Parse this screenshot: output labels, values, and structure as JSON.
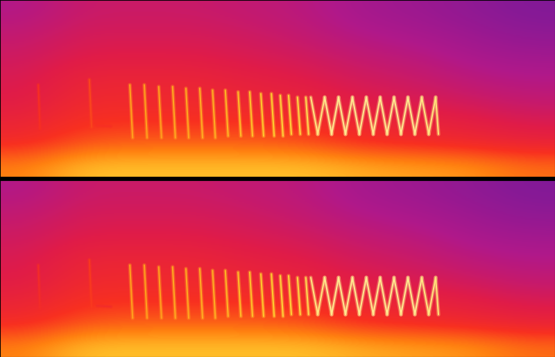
{
  "chart_data": [
    {
      "type": "spectrogram",
      "xlim": [
        0,
        100
      ],
      "ylim": [
        0,
        100
      ],
      "tick_labels": false,
      "level_range": [
        0,
        1
      ],
      "cells": [
        [
          0.75,
          0.85,
          0.85,
          0.85,
          0.85,
          0.85,
          0.82,
          0.8,
          0.78,
          0.72
        ],
        [
          0.6,
          0.68,
          0.7,
          0.7,
          0.7,
          0.68,
          0.62,
          0.6,
          0.58,
          0.55
        ],
        [
          0.55,
          0.62,
          0.62,
          0.62,
          0.62,
          0.6,
          0.56,
          0.54,
          0.52,
          0.48
        ],
        [
          0.5,
          0.58,
          0.58,
          0.58,
          0.56,
          0.54,
          0.5,
          0.48,
          0.45,
          0.42
        ],
        [
          0.48,
          0.55,
          0.55,
          0.55,
          0.52,
          0.5,
          0.46,
          0.44,
          0.4,
          0.38
        ],
        [
          0.45,
          0.5,
          0.5,
          0.5,
          0.48,
          0.46,
          0.42,
          0.4,
          0.36,
          0.34
        ],
        [
          0.42,
          0.47,
          0.47,
          0.47,
          0.45,
          0.42,
          0.38,
          0.36,
          0.33,
          0.3
        ],
        [
          0.38,
          0.44,
          0.44,
          0.44,
          0.42,
          0.4,
          0.35,
          0.33,
          0.3,
          0.27
        ]
      ],
      "calls": [
        {
          "t_start": 6.9,
          "t_end": 7.2,
          "f_start": 52,
          "f_end": 27,
          "level": 0.62
        },
        {
          "t_start": 16.1,
          "t_end": 16.5,
          "f_start": 55,
          "f_end": 28,
          "level": 0.66
        },
        {
          "t_start": 17.5,
          "t_end": 20.0,
          "f_start": 29,
          "f_end": 28.5,
          "level": 0.62
        },
        {
          "t_start": 23.4,
          "t_end": 23.9,
          "f_start": 52,
          "f_end": 22,
          "level": 0.8
        },
        {
          "t_start": 26.0,
          "t_end": 26.5,
          "f_start": 52,
          "f_end": 22,
          "level": 0.8
        },
        {
          "t_start": 28.6,
          "t_end": 29.1,
          "f_start": 51,
          "f_end": 22,
          "level": 0.8
        },
        {
          "t_start": 31.1,
          "t_end": 31.6,
          "f_start": 51,
          "f_end": 22,
          "level": 0.81
        },
        {
          "t_start": 33.5,
          "t_end": 34.0,
          "f_start": 50,
          "f_end": 22,
          "level": 0.81
        },
        {
          "t_start": 36.0,
          "t_end": 36.5,
          "f_start": 50,
          "f_end": 22,
          "level": 0.82
        },
        {
          "t_start": 38.3,
          "t_end": 38.8,
          "f_start": 49,
          "f_end": 22,
          "level": 0.82
        },
        {
          "t_start": 40.6,
          "t_end": 41.1,
          "f_start": 49,
          "f_end": 23,
          "level": 0.83
        },
        {
          "t_start": 42.9,
          "t_end": 43.4,
          "f_start": 48,
          "f_end": 23,
          "level": 0.84
        },
        {
          "t_start": 45.0,
          "t_end": 45.5,
          "f_start": 48,
          "f_end": 23,
          "level": 0.85
        },
        {
          "t_start": 47.0,
          "t_end": 47.5,
          "f_start": 47,
          "f_end": 23,
          "level": 0.86
        },
        {
          "t_start": 48.9,
          "t_end": 49.4,
          "f_start": 47,
          "f_end": 23,
          "level": 0.87
        },
        {
          "t_start": 50.5,
          "t_end": 51.0,
          "f_start": 46,
          "f_end": 23,
          "level": 0.88
        },
        {
          "t_start": 52.0,
          "t_end": 52.5,
          "f_start": 46,
          "f_end": 24,
          "level": 0.88
        },
        {
          "t_start": 53.6,
          "t_end": 54.1,
          "f_start": 45,
          "f_end": 24,
          "level": 0.89
        },
        {
          "t_start": 55.1,
          "t_end": 55.6,
          "f_start": 45,
          "f_end": 24,
          "level": 0.9
        },
        {
          "t_start": 56.0,
          "t_end": 57.25,
          "f_start": 45,
          "f_end": 24,
          "level": 0.94
        },
        {
          "t_start": 57.25,
          "t_end": 58.5,
          "f_start": 24,
          "f_end": 45,
          "level": 0.94
        },
        {
          "t_start": 58.5,
          "t_end": 59.75,
          "f_start": 45,
          "f_end": 24,
          "level": 0.95
        },
        {
          "t_start": 59.75,
          "t_end": 61.0,
          "f_start": 24,
          "f_end": 45,
          "level": 0.95
        },
        {
          "t_start": 61.0,
          "t_end": 62.25,
          "f_start": 45,
          "f_end": 24,
          "level": 0.95
        },
        {
          "t_start": 62.25,
          "t_end": 63.5,
          "f_start": 24,
          "f_end": 45,
          "level": 0.95
        },
        {
          "t_start": 63.5,
          "t_end": 64.75,
          "f_start": 45,
          "f_end": 24,
          "level": 0.95
        },
        {
          "t_start": 64.75,
          "t_end": 66.0,
          "f_start": 24,
          "f_end": 45,
          "level": 0.95
        },
        {
          "t_start": 66.0,
          "t_end": 67.25,
          "f_start": 45,
          "f_end": 24,
          "level": 0.95
        },
        {
          "t_start": 67.25,
          "t_end": 68.5,
          "f_start": 24,
          "f_end": 45,
          "level": 0.95
        },
        {
          "t_start": 68.5,
          "t_end": 69.75,
          "f_start": 45,
          "f_end": 24,
          "level": 0.95
        },
        {
          "t_start": 69.75,
          "t_end": 71.0,
          "f_start": 24,
          "f_end": 45,
          "level": 0.95
        },
        {
          "t_start": 71.0,
          "t_end": 72.25,
          "f_start": 45,
          "f_end": 24,
          "level": 0.95
        },
        {
          "t_start": 72.25,
          "t_end": 73.5,
          "f_start": 24,
          "f_end": 45,
          "level": 0.95
        },
        {
          "t_start": 73.5,
          "t_end": 74.75,
          "f_start": 45,
          "f_end": 24,
          "level": 0.95
        },
        {
          "t_start": 74.75,
          "t_end": 76.0,
          "f_start": 24,
          "f_end": 45,
          "level": 0.95
        },
        {
          "t_start": 76.0,
          "t_end": 77.25,
          "f_start": 45,
          "f_end": 24,
          "level": 0.94
        },
        {
          "t_start": 77.25,
          "t_end": 78.5,
          "f_start": 24,
          "f_end": 45,
          "level": 0.94
        },
        {
          "t_start": 78.5,
          "t_end": 79.0,
          "f_start": 45,
          "f_end": 24,
          "level": 0.93
        }
      ]
    },
    {
      "type": "spectrogram",
      "xlim": [
        0,
        100
      ],
      "ylim": [
        0,
        100
      ],
      "tick_labels": false,
      "level_range": [
        0,
        1
      ],
      "cells": [
        [
          0.75,
          0.85,
          0.85,
          0.85,
          0.85,
          0.85,
          0.82,
          0.8,
          0.78,
          0.72
        ],
        [
          0.6,
          0.68,
          0.7,
          0.7,
          0.7,
          0.68,
          0.62,
          0.6,
          0.58,
          0.55
        ],
        [
          0.55,
          0.62,
          0.62,
          0.62,
          0.62,
          0.6,
          0.56,
          0.54,
          0.52,
          0.48
        ],
        [
          0.5,
          0.58,
          0.58,
          0.58,
          0.56,
          0.54,
          0.5,
          0.48,
          0.45,
          0.42
        ],
        [
          0.48,
          0.55,
          0.55,
          0.55,
          0.52,
          0.5,
          0.46,
          0.44,
          0.4,
          0.38
        ],
        [
          0.45,
          0.5,
          0.5,
          0.5,
          0.48,
          0.46,
          0.42,
          0.4,
          0.36,
          0.34
        ],
        [
          0.42,
          0.47,
          0.47,
          0.47,
          0.45,
          0.42,
          0.38,
          0.36,
          0.33,
          0.3
        ],
        [
          0.38,
          0.44,
          0.44,
          0.44,
          0.42,
          0.4,
          0.35,
          0.33,
          0.3,
          0.27
        ]
      ],
      "calls": [
        {
          "t_start": 6.9,
          "t_end": 7.2,
          "f_start": 52,
          "f_end": 27,
          "level": 0.6
        },
        {
          "t_start": 16.1,
          "t_end": 16.5,
          "f_start": 55,
          "f_end": 28,
          "level": 0.64
        },
        {
          "t_start": 17.5,
          "t_end": 20.0,
          "f_start": 29,
          "f_end": 28.5,
          "level": 0.6
        },
        {
          "t_start": 23.4,
          "t_end": 23.9,
          "f_start": 52,
          "f_end": 22,
          "level": 0.8
        },
        {
          "t_start": 26.0,
          "t_end": 26.5,
          "f_start": 52,
          "f_end": 22,
          "level": 0.8
        },
        {
          "t_start": 28.6,
          "t_end": 29.1,
          "f_start": 51,
          "f_end": 22,
          "level": 0.8
        },
        {
          "t_start": 31.1,
          "t_end": 31.6,
          "f_start": 51,
          "f_end": 22,
          "level": 0.81
        },
        {
          "t_start": 33.5,
          "t_end": 34.0,
          "f_start": 50,
          "f_end": 22,
          "level": 0.81
        },
        {
          "t_start": 36.0,
          "t_end": 36.5,
          "f_start": 50,
          "f_end": 22,
          "level": 0.82
        },
        {
          "t_start": 38.3,
          "t_end": 38.8,
          "f_start": 49,
          "f_end": 22,
          "level": 0.82
        },
        {
          "t_start": 40.6,
          "t_end": 41.1,
          "f_start": 49,
          "f_end": 23,
          "level": 0.83
        },
        {
          "t_start": 42.9,
          "t_end": 43.4,
          "f_start": 48,
          "f_end": 23,
          "level": 0.84
        },
        {
          "t_start": 45.0,
          "t_end": 45.5,
          "f_start": 48,
          "f_end": 23,
          "level": 0.85
        },
        {
          "t_start": 47.0,
          "t_end": 47.5,
          "f_start": 47,
          "f_end": 23,
          "level": 0.86
        },
        {
          "t_start": 48.9,
          "t_end": 49.4,
          "f_start": 47,
          "f_end": 23,
          "level": 0.87
        },
        {
          "t_start": 50.5,
          "t_end": 51.0,
          "f_start": 46,
          "f_end": 23,
          "level": 0.88
        },
        {
          "t_start": 52.0,
          "t_end": 52.5,
          "f_start": 46,
          "f_end": 24,
          "level": 0.88
        },
        {
          "t_start": 53.6,
          "t_end": 54.1,
          "f_start": 45,
          "f_end": 24,
          "level": 0.89
        },
        {
          "t_start": 55.1,
          "t_end": 55.6,
          "f_start": 45,
          "f_end": 24,
          "level": 0.9
        },
        {
          "t_start": 56.0,
          "t_end": 57.25,
          "f_start": 45,
          "f_end": 24,
          "level": 0.94
        },
        {
          "t_start": 57.25,
          "t_end": 58.5,
          "f_start": 24,
          "f_end": 45,
          "level": 0.94
        },
        {
          "t_start": 58.5,
          "t_end": 59.75,
          "f_start": 45,
          "f_end": 24,
          "level": 0.95
        },
        {
          "t_start": 59.75,
          "t_end": 61.0,
          "f_start": 24,
          "f_end": 45,
          "level": 0.95
        },
        {
          "t_start": 61.0,
          "t_end": 62.25,
          "f_start": 45,
          "f_end": 24,
          "level": 0.95
        },
        {
          "t_start": 62.25,
          "t_end": 63.5,
          "f_start": 24,
          "f_end": 45,
          "level": 0.95
        },
        {
          "t_start": 63.5,
          "t_end": 64.75,
          "f_start": 45,
          "f_end": 24,
          "level": 0.95
        },
        {
          "t_start": 64.75,
          "t_end": 66.0,
          "f_start": 24,
          "f_end": 45,
          "level": 0.95
        },
        {
          "t_start": 66.0,
          "t_end": 67.25,
          "f_start": 45,
          "f_end": 24,
          "level": 0.95
        },
        {
          "t_start": 67.25,
          "t_end": 68.5,
          "f_start": 24,
          "f_end": 45,
          "level": 0.95
        },
        {
          "t_start": 68.5,
          "t_end": 69.75,
          "f_start": 45,
          "f_end": 24,
          "level": 0.95
        },
        {
          "t_start": 69.75,
          "t_end": 71.0,
          "f_start": 24,
          "f_end": 45,
          "level": 0.95
        },
        {
          "t_start": 71.0,
          "t_end": 72.25,
          "f_start": 45,
          "f_end": 24,
          "level": 0.95
        },
        {
          "t_start": 72.25,
          "t_end": 73.5,
          "f_start": 24,
          "f_end": 45,
          "level": 0.95
        },
        {
          "t_start": 73.5,
          "t_end": 74.75,
          "f_start": 45,
          "f_end": 24,
          "level": 0.95
        },
        {
          "t_start": 74.75,
          "t_end": 76.0,
          "f_start": 24,
          "f_end": 45,
          "level": 0.95
        },
        {
          "t_start": 76.0,
          "t_end": 77.25,
          "f_start": 45,
          "f_end": 24,
          "level": 0.94
        },
        {
          "t_start": 77.25,
          "t_end": 78.5,
          "f_start": 24,
          "f_end": 45,
          "level": 0.94
        },
        {
          "t_start": 78.5,
          "t_end": 79.0,
          "f_start": 45,
          "f_end": 24,
          "level": 0.93
        }
      ]
    }
  ]
}
